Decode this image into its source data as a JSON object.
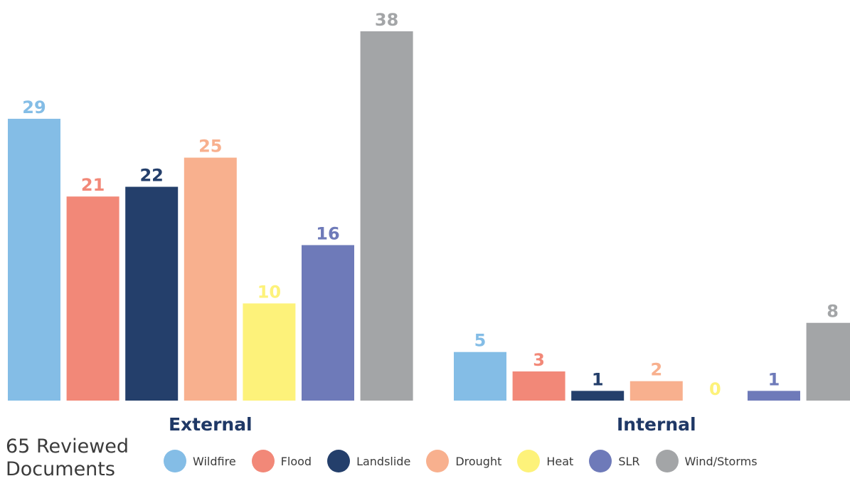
{
  "chart_data": {
    "type": "bar",
    "groups": [
      "External",
      "Internal"
    ],
    "series": [
      {
        "name": "Wildfire",
        "color": "#84bde6",
        "values": [
          29,
          5
        ]
      },
      {
        "name": "Flood",
        "color": "#f28878",
        "values": [
          21,
          3
        ]
      },
      {
        "name": "Landslide",
        "color": "#243f6b",
        "values": [
          22,
          1
        ]
      },
      {
        "name": "Drought",
        "color": "#f8b08e",
        "values": [
          25,
          2
        ]
      },
      {
        "name": "Heat",
        "color": "#fdf27a",
        "values": [
          10,
          0
        ]
      },
      {
        "name": "SLR",
        "color": "#6e7ab9",
        "values": [
          16,
          1
        ]
      },
      {
        "name": "Wind/Storms",
        "color": "#a3a5a7",
        "values": [
          38,
          8
        ]
      }
    ],
    "title": "",
    "xlabel": "",
    "ylabel": "",
    "ylim": [
      0,
      38
    ],
    "grid": false,
    "legend_position": "bottom"
  },
  "footnote": "65 Reviewed\nDocuments"
}
